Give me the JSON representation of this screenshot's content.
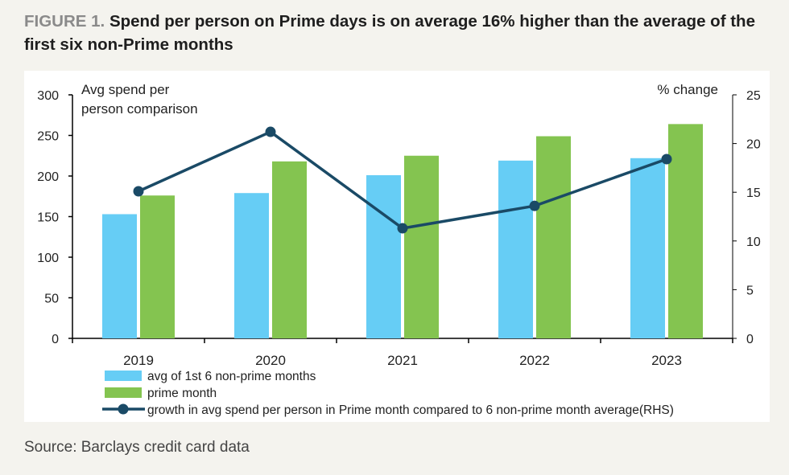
{
  "figure_label": "FIGURE 1.",
  "title": "Spend per person on Prime days is on average 16% higher than the average of the first six non-Prime months",
  "source": "Source: Barclays credit card data",
  "colors": {
    "bar_nonprime": "#66cdf5",
    "bar_prime": "#84c450",
    "line": "#1a4a66",
    "axis": "#000000"
  },
  "chart_data": {
    "type": "bar",
    "categories": [
      "2019",
      "2020",
      "2021",
      "2022",
      "2023"
    ],
    "series": [
      {
        "name": "avg of 1st 6 non-prime months",
        "type": "bar",
        "axis": "left",
        "values": [
          153,
          179,
          201,
          219,
          222
        ]
      },
      {
        "name": "prime month",
        "type": "bar",
        "axis": "left",
        "values": [
          176,
          218,
          225,
          249,
          264
        ]
      },
      {
        "name": "growth in avg spend per person in Prime month compared to 6 non-prime month average(RHS)",
        "type": "line",
        "axis": "right",
        "values": [
          15.1,
          21.2,
          11.3,
          13.6,
          18.4
        ]
      }
    ],
    "ylabel": "Avg spend per person comparison",
    "ylabel_lines": [
      "Avg spend per",
      "person comparison"
    ],
    "y2label": "% change",
    "ylim": [
      0,
      300
    ],
    "yticks": [
      0,
      50,
      100,
      150,
      200,
      250,
      300
    ],
    "y2lim": [
      0,
      25
    ],
    "y2ticks": [
      0,
      5,
      10,
      15,
      20,
      25
    ],
    "legend_position": "bottom-left"
  }
}
